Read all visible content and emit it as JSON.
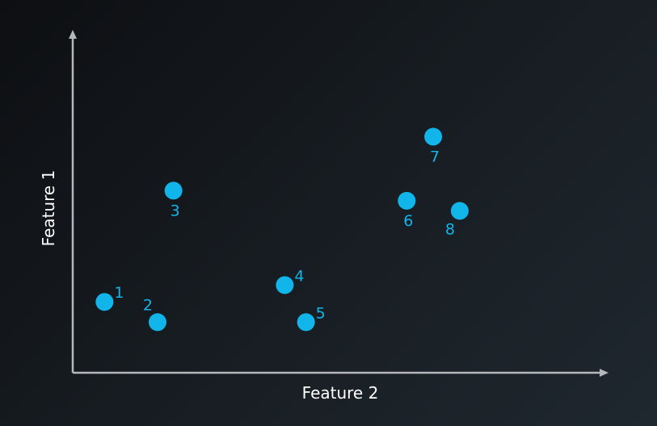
{
  "chart_data": {
    "type": "scatter",
    "xlabel": "Feature 2",
    "ylabel": "Feature 1",
    "xlim": [
      0,
      10
    ],
    "ylim": [
      0,
      10
    ],
    "grid": false,
    "point_color": "#12b5ea",
    "axis_color": "#b4b8bb",
    "points": [
      {
        "label": "1",
        "x": 0.6,
        "y": 2.1,
        "label_pos": "upper-right"
      },
      {
        "label": "2",
        "x": 1.6,
        "y": 1.5,
        "label_pos": "upper-left"
      },
      {
        "label": "3",
        "x": 1.9,
        "y": 5.4,
        "label_pos": "below"
      },
      {
        "label": "4",
        "x": 4.0,
        "y": 2.6,
        "label_pos": "upper-right"
      },
      {
        "label": "5",
        "x": 4.4,
        "y": 1.5,
        "label_pos": "upper-right"
      },
      {
        "label": "6",
        "x": 6.3,
        "y": 5.1,
        "label_pos": "below"
      },
      {
        "label": "7",
        "x": 6.8,
        "y": 7.0,
        "label_pos": "below"
      },
      {
        "label": "8",
        "x": 7.3,
        "y": 4.8,
        "label_pos": "below-left"
      }
    ]
  }
}
